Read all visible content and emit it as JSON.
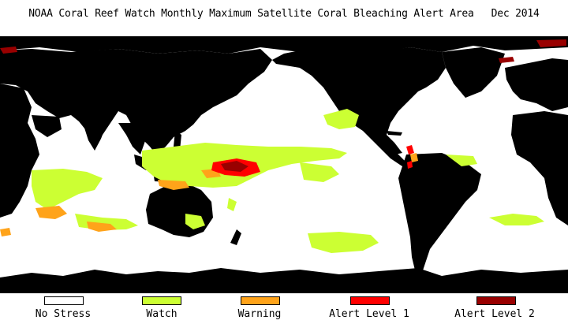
{
  "title": {
    "main": "NOAA Coral Reef Watch Monthly Maximum Satellite Coral Bleaching Alert Area",
    "date": "Dec 2014"
  },
  "legend": [
    {
      "label": "No Stress",
      "color": "#ffffff"
    },
    {
      "label": "Watch",
      "color": "#ccff33"
    },
    {
      "label": "Warning",
      "color": "#ffa31a"
    },
    {
      "label": "Alert Level 1",
      "color": "#ff0000"
    },
    {
      "label": "Alert Level 2",
      "color": "#990000"
    }
  ],
  "colors": {
    "land": "#000000",
    "ocean": "#ffffff"
  }
}
